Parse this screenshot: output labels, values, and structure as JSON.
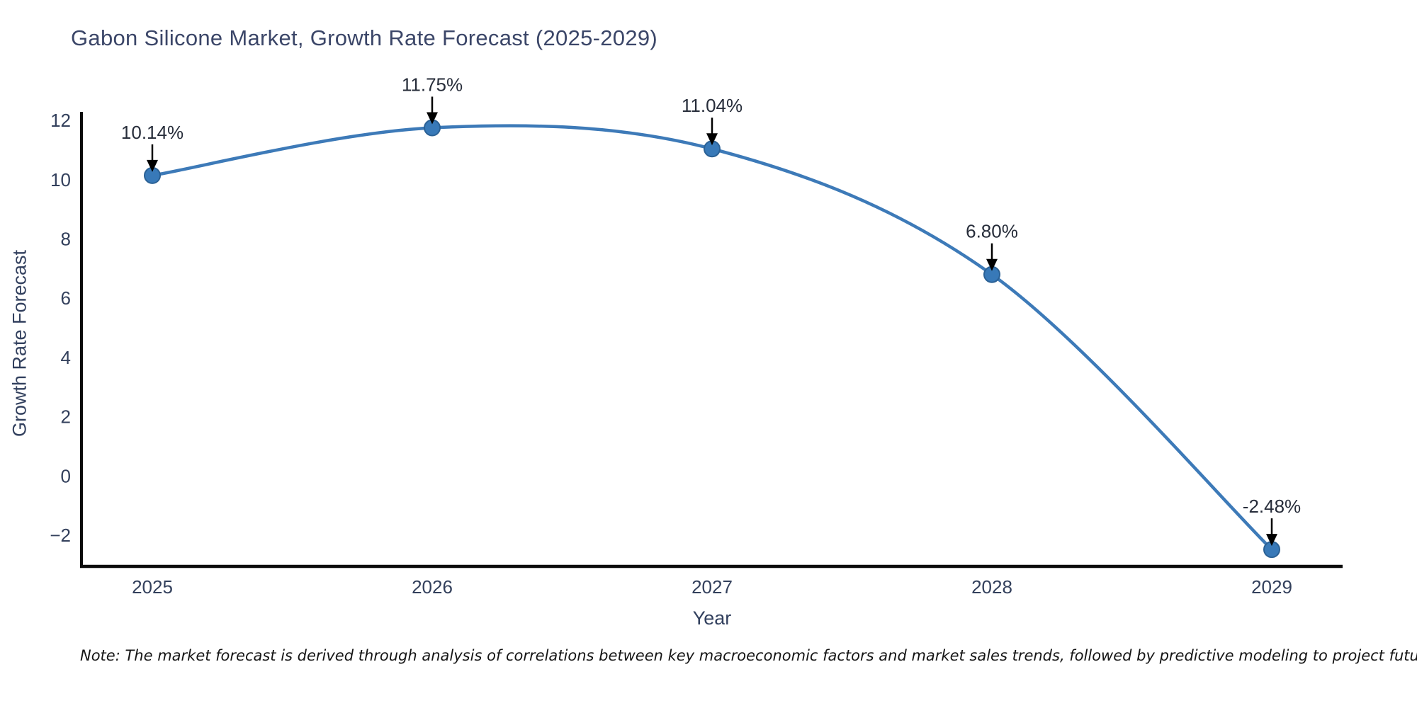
{
  "title": "Gabon Silicone Market, Growth Rate Forecast (2025-2029)",
  "note": "Note: The market forecast is derived through analysis of correlations between key macroeconomic factors and market sales trends, followed by predictive modeling to project future sales",
  "chart_data": {
    "type": "line",
    "title": "Gabon Silicone Market, Growth Rate Forecast (2025-2029)",
    "xlabel": "Year",
    "ylabel": "Growth Rate Forecast",
    "x": [
      "2025",
      "2026",
      "2027",
      "2028",
      "2029"
    ],
    "values": [
      10.14,
      11.75,
      11.04,
      6.8,
      -2.48
    ],
    "point_labels": [
      "10.14%",
      "11.75%",
      "11.04%",
      "6.80%",
      "-2.48%"
    ],
    "yticks": [
      -2,
      0,
      2,
      4,
      6,
      8,
      10,
      12
    ],
    "ylim": [
      -3.05,
      12.24
    ],
    "line_shape": "spline",
    "grid": false,
    "legend_position": "none",
    "colors": {
      "line": "#3d7ab8",
      "marker_fill": "#3879b8",
      "marker_edge": "#2b6195",
      "axis": "#0b0b0b",
      "annotation_arrow": "#000000"
    }
  }
}
